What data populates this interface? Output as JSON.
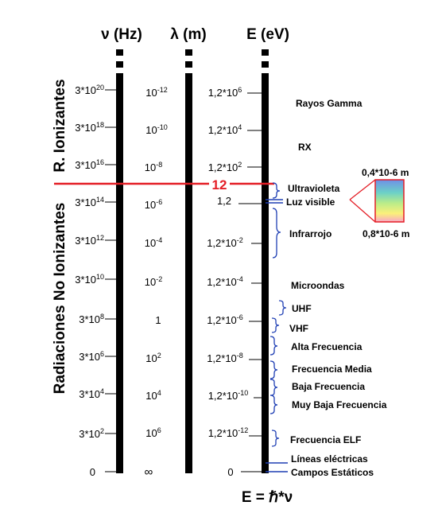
{
  "columns": {
    "frequency_header": "ν (Hz)",
    "wavelength_header": "λ (m)",
    "energy_header": "E (eV)"
  },
  "frequency_labels": [
    {
      "base": "3*10",
      "exp": "20"
    },
    {
      "base": "3*10",
      "exp": "18"
    },
    {
      "base": "3*10",
      "exp": "16"
    },
    {
      "base": "3*10",
      "exp": "14"
    },
    {
      "base": "3*10",
      "exp": "12"
    },
    {
      "base": "3*10",
      "exp": "10"
    },
    {
      "base": "3*10",
      "exp": "8"
    },
    {
      "base": "3*10",
      "exp": "6"
    },
    {
      "base": "3*10",
      "exp": "4"
    },
    {
      "base": "3*10",
      "exp": "2"
    },
    {
      "base": "0",
      "exp": ""
    }
  ],
  "wavelength_labels": [
    {
      "base": "10",
      "exp": "-12"
    },
    {
      "base": "10",
      "exp": "-10"
    },
    {
      "base": "10",
      "exp": "-8"
    },
    {
      "base": "10",
      "exp": "-6"
    },
    {
      "base": "10",
      "exp": "-4"
    },
    {
      "base": "10",
      "exp": "-2"
    },
    {
      "base": "1",
      "exp": ""
    },
    {
      "base": "10",
      "exp": "2"
    },
    {
      "base": "10",
      "exp": "4"
    },
    {
      "base": "10",
      "exp": "6"
    },
    {
      "base": "∞",
      "exp": ""
    }
  ],
  "energy_labels": [
    {
      "base": "1,2*10",
      "exp": "6"
    },
    {
      "base": "1,2*10",
      "exp": "4"
    },
    {
      "base": "1,2*10",
      "exp": "2"
    },
    {
      "base": "1,2",
      "exp": ""
    },
    {
      "base": "1,2*10",
      "exp": "-2"
    },
    {
      "base": "1,2*10",
      "exp": "-4"
    },
    {
      "base": "1,2*10",
      "exp": "-6"
    },
    {
      "base": "1,2*10",
      "exp": "-8"
    },
    {
      "base": "1,2*10",
      "exp": "-10"
    },
    {
      "base": "1,2*10",
      "exp": "-12"
    },
    {
      "base": "0",
      "exp": ""
    }
  ],
  "regions": {
    "ionizing": "R. Ionizantes",
    "non_ionizing": "Radiaciones No Ionizantes"
  },
  "boundary_marker": "12",
  "bands": [
    "Rayos Gamma",
    "RX",
    "Ultravioleta",
    "Luz visible",
    "Infrarrojo",
    "Microondas",
    "UHF",
    "VHF",
    "Alta Frecuencia",
    "Frecuencia Media",
    "Baja Frecuencia",
    "Muy Baja Frecuencia",
    "Frecuencia ELF",
    "Líneas eléctricas",
    "Campos Estáticos"
  ],
  "visible_range": {
    "upper": "0,4*10-6 m",
    "lower": "0,8*10-6 m"
  },
  "formula": "E = ℏ*ν",
  "colors": {
    "boundary_line": "#e41e26",
    "brace": "#1f3fb4",
    "scale_bar": "#000000"
  }
}
